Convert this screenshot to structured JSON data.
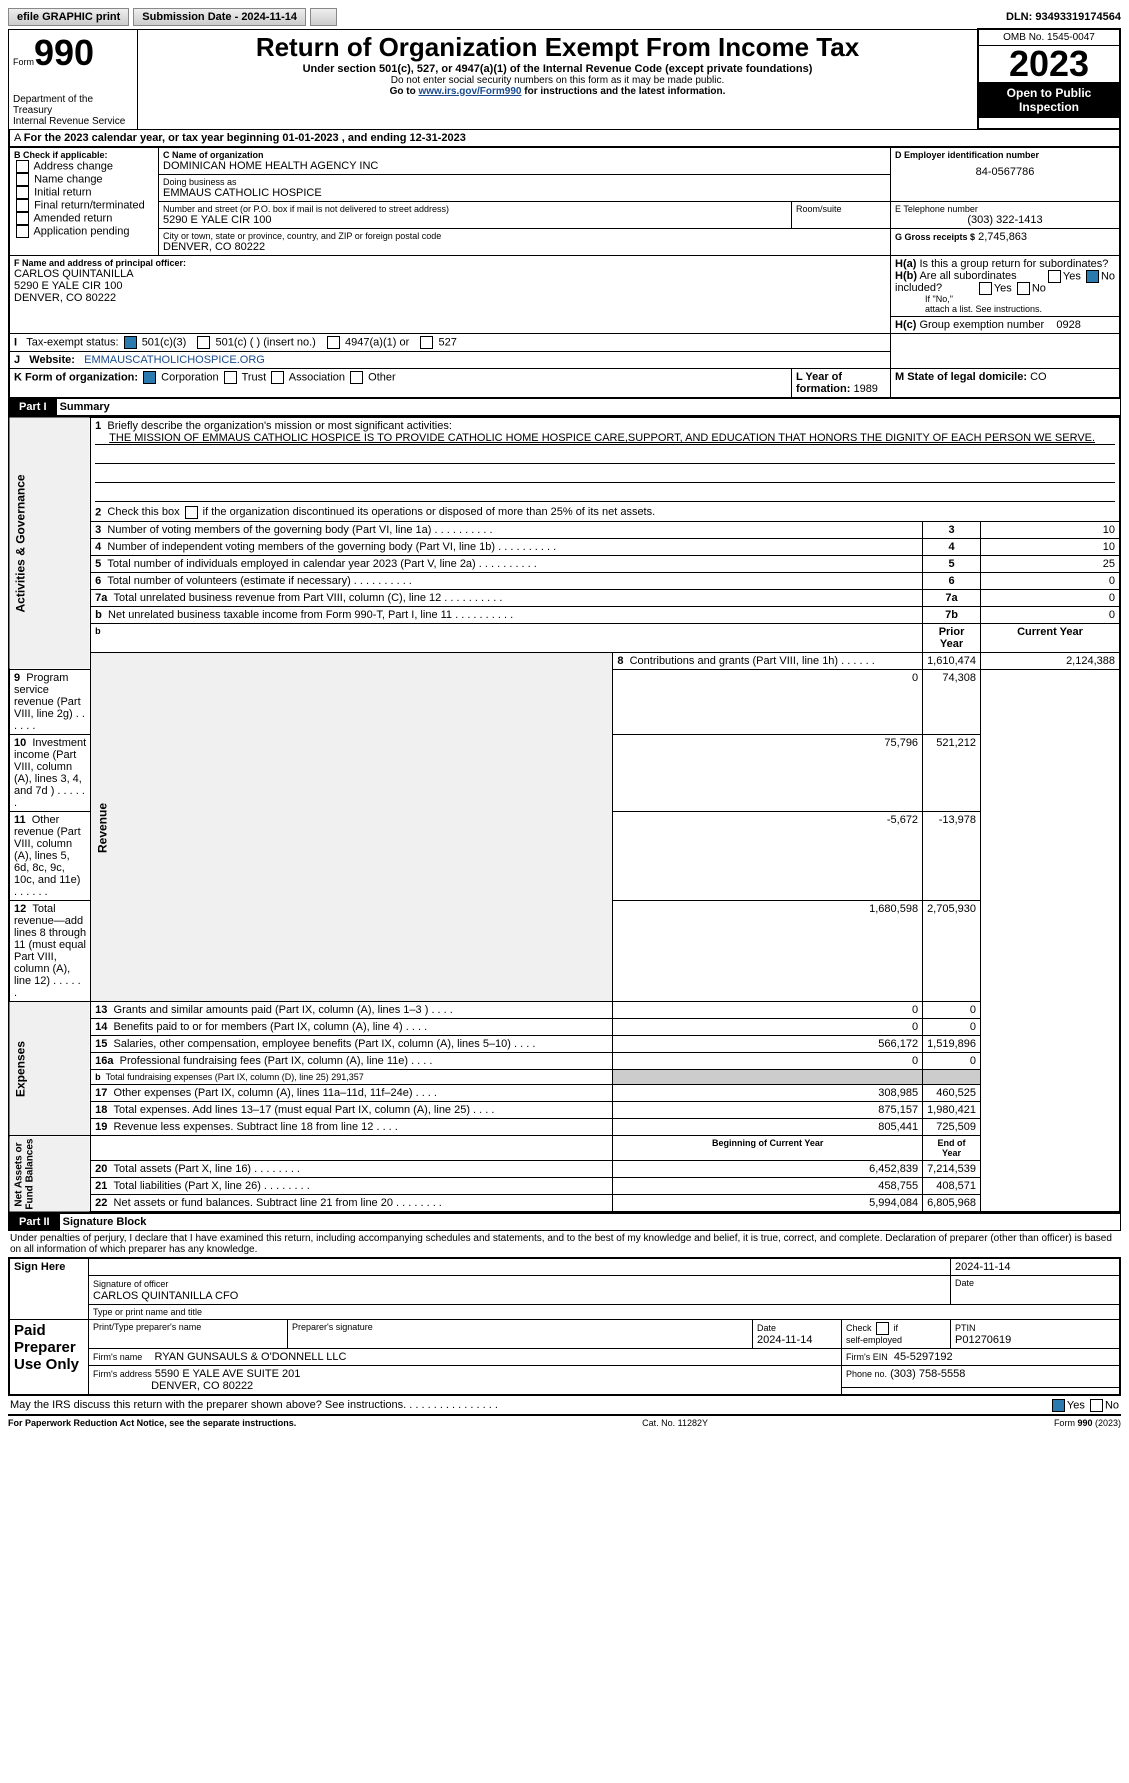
{
  "topbar": {
    "efile": "efile GRAPHIC print",
    "submission": "Submission Date - 2024-11-14",
    "dln": "DLN: 93493319174564"
  },
  "header": {
    "form_word": "Form",
    "form_num": "990",
    "title": "Return of Organization Exempt From Income Tax",
    "subtitle": "Under section 501(c), 527, or 4947(a)(1) of the Internal Revenue Code (except private foundations)",
    "note1": "Do not enter social security numbers on this form as it may be made public.",
    "note2": "Go to www.irs.gov/Form990 for instructions and the latest information.",
    "dept": "Department of the Treasury\nInternal Revenue Service",
    "omb": "OMB No. 1545-0047",
    "year": "2023",
    "public": "Open to Public Inspection"
  },
  "a_line": "For the 2023 calendar year, or tax year beginning 01-01-2023    , and ending 12-31-2023",
  "boxB": {
    "label": "B Check if applicable:",
    "opts": [
      "Address change",
      "Name change",
      "Initial return",
      "Final return/terminated",
      "Amended return",
      "Application pending"
    ]
  },
  "boxC": {
    "name_lbl": "C Name of organization",
    "name": "DOMINICAN HOME HEALTH AGENCY INC",
    "dba_lbl": "Doing business as",
    "dba": "EMMAUS CATHOLIC HOSPICE",
    "street_lbl": "Number and street (or P.O. box if mail is not delivered to street address)",
    "street": "5290 E YALE CIR 100",
    "room_lbl": "Room/suite",
    "city_lbl": "City or town, state or province, country, and ZIP or foreign postal code",
    "city": "DENVER, CO  80222"
  },
  "boxD": {
    "lbl": "D Employer identification number",
    "val": "84-0567786"
  },
  "boxE": {
    "lbl": "E Telephone number",
    "val": "(303) 322-1413"
  },
  "boxG": {
    "lbl": "G Gross receipts $",
    "val": "2,745,863"
  },
  "boxF": {
    "lbl": "F  Name and address of principal officer:",
    "l1": "CARLOS QUINTANILLA",
    "l2": "5290 E YALE CIR 100",
    "l3": "DENVER, CO  80222"
  },
  "boxH": {
    "a": "Is this a group return for subordinates?",
    "a_yes": "Yes",
    "a_no": "No",
    "b": "Are all subordinates included?",
    "b_yes": "Yes",
    "b_no": "No",
    "b_note": "If \"No,\" attach a list. See instructions.",
    "c_lbl": "Group exemption number",
    "c_val": "0928"
  },
  "boxI": {
    "lbl": "Tax-exempt status:",
    "o1": "501(c)(3)",
    "o2": "501(c) (   ) (insert no.)",
    "o3": "4947(a)(1) or",
    "o4": "527"
  },
  "boxJ": {
    "lbl": "Website:",
    "val": "EMMAUSCATHOLICHOSPICE.ORG"
  },
  "boxK": {
    "lbl": "K Form of organization:",
    "o1": "Corporation",
    "o2": "Trust",
    "o3": "Association",
    "o4": "Other"
  },
  "boxL": {
    "lbl": "L Year of formation: ",
    "val": "1989"
  },
  "boxM": {
    "lbl": "M State of legal domicile: ",
    "val": "CO"
  },
  "partI": {
    "label": "Part I",
    "title": "Summary"
  },
  "sec1": {
    "q1": "Briefly describe the organization's mission or most significant activities:",
    "mission": "THE MISSION OF EMMAUS CATHOLIC HOSPICE IS TO PROVIDE CATHOLIC HOME HOSPICE CARE,SUPPORT, AND EDUCATION THAT HONORS THE DIGNITY OF EACH PERSON WE SERVE.",
    "q2": "Check this box      if the organization discontinued its operations or disposed of more than 25% of its net assets.",
    "rows": [
      {
        "n": "3",
        "t": "Number of voting members of the governing body (Part VI, line 1a)",
        "box": "3",
        "v": "10"
      },
      {
        "n": "4",
        "t": "Number of independent voting members of the governing body (Part VI, line 1b)",
        "box": "4",
        "v": "10"
      },
      {
        "n": "5",
        "t": "Total number of individuals employed in calendar year 2023 (Part V, line 2a)",
        "box": "5",
        "v": "25"
      },
      {
        "n": "6",
        "t": "Total number of volunteers (estimate if necessary)",
        "box": "6",
        "v": "0"
      },
      {
        "n": "7a",
        "t": "Total unrelated business revenue from Part VIII, column (C), line 12",
        "box": "7a",
        "v": "0"
      },
      {
        "n": "b",
        "t": "Net unrelated business taxable income from Form 990-T, Part I, line 11",
        "box": "7b",
        "v": "0"
      }
    ]
  },
  "revenue": {
    "hdr_prior": "Prior Year",
    "hdr_curr": "Current Year",
    "rows": [
      {
        "n": "8",
        "t": "Contributions and grants (Part VIII, line 1h)",
        "p": "1,610,474",
        "c": "2,124,388"
      },
      {
        "n": "9",
        "t": "Program service revenue (Part VIII, line 2g)",
        "p": "0",
        "c": "74,308"
      },
      {
        "n": "10",
        "t": "Investment income (Part VIII, column (A), lines 3, 4, and 7d )",
        "p": "75,796",
        "c": "521,212"
      },
      {
        "n": "11",
        "t": "Other revenue (Part VIII, column (A), lines 5, 6d, 8c, 9c, 10c, and 11e)",
        "p": "-5,672",
        "c": "-13,978"
      },
      {
        "n": "12",
        "t": "Total revenue—add lines 8 through 11 (must equal Part VIII, column (A), line 12)",
        "p": "1,680,598",
        "c": "2,705,930"
      }
    ]
  },
  "expenses": {
    "rows": [
      {
        "n": "13",
        "t": "Grants and similar amounts paid (Part IX, column (A), lines 1–3 )",
        "p": "0",
        "c": "0"
      },
      {
        "n": "14",
        "t": "Benefits paid to or for members (Part IX, column (A), line 4)",
        "p": "0",
        "c": "0"
      },
      {
        "n": "15",
        "t": "Salaries, other compensation, employee benefits (Part IX, column (A), lines 5–10)",
        "p": "566,172",
        "c": "1,519,896"
      },
      {
        "n": "16a",
        "t": "Professional fundraising fees (Part IX, column (A), line 11e)",
        "p": "0",
        "c": "0"
      },
      {
        "n": "b",
        "t": "Total fundraising expenses (Part IX, column (D), line 25) 291,357",
        "p": "",
        "c": "",
        "grey": true
      },
      {
        "n": "17",
        "t": "Other expenses (Part IX, column (A), lines 11a–11d, 11f–24e)",
        "p": "308,985",
        "c": "460,525"
      },
      {
        "n": "18",
        "t": "Total expenses. Add lines 13–17 (must equal Part IX, column (A), line 25)",
        "p": "875,157",
        "c": "1,980,421"
      },
      {
        "n": "19",
        "t": "Revenue less expenses. Subtract line 18 from line 12",
        "p": "805,441",
        "c": "725,509"
      }
    ]
  },
  "netassets": {
    "hdr_beg": "Beginning of Current Year",
    "hdr_end": "End of Year",
    "rows": [
      {
        "n": "20",
        "t": "Total assets (Part X, line 16)",
        "p": "6,452,839",
        "c": "7,214,539"
      },
      {
        "n": "21",
        "t": "Total liabilities (Part X, line 26)",
        "p": "458,755",
        "c": "408,571"
      },
      {
        "n": "22",
        "t": "Net assets or fund balances. Subtract line 21 from line 20",
        "p": "5,994,084",
        "c": "6,805,968"
      }
    ]
  },
  "sidelabels": {
    "ag": "Activities & Governance",
    "rev": "Revenue",
    "exp": "Expenses",
    "na": "Net Assets or\nFund Balances"
  },
  "partII": {
    "label": "Part II",
    "title": "Signature Block",
    "decl": "Under penalties of perjury, I declare that I have examined this return, including accompanying schedules and statements, and to the best of my knowledge and belief, it is true, correct, and complete. Declaration of preparer (other than officer) is based on all information of which preparer has any knowledge."
  },
  "sign": {
    "sign_here": "Sign Here",
    "date": "2024-11-14",
    "sig_lbl": "Signature of officer",
    "officer": "CARLOS QUINTANILLA  CFO",
    "title_lbl": "Type or print name and title",
    "paid": "Paid Preparer Use Only",
    "pname_lbl": "Print/Type preparer's name",
    "psig_lbl": "Preparer's signature",
    "pdate_lbl": "Date",
    "pdate": "2024-11-14",
    "check_lbl": "Check       if self-employed",
    "ptin_lbl": "PTIN",
    "ptin": "P01270619",
    "firm_lbl": "Firm's name",
    "firm": "RYAN GUNSAULS & O'DONNELL LLC",
    "fein_lbl": "Firm's EIN",
    "fein": "45-5297192",
    "addr_lbl": "Firm's address",
    "addr1": "5590 E YALE AVE SUITE 201",
    "addr2": "DENVER, CO  80222",
    "phone_lbl": "Phone no.",
    "phone": "(303) 758-5558",
    "discuss": "May the IRS discuss this return with the preparer shown above? See instructions.",
    "yes": "Yes",
    "no": "No"
  },
  "footer": {
    "pra": "For Paperwork Reduction Act Notice, see the separate instructions.",
    "cat": "Cat. No. 11282Y",
    "form": "Form 990 (2023)"
  }
}
